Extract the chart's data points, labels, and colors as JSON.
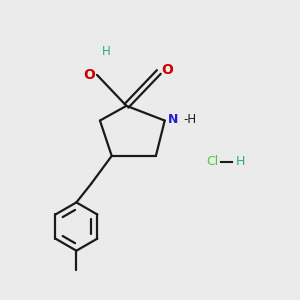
{
  "bg_color": "#ebebeb",
  "bond_color": "#1a1a1a",
  "N_color": "#2020cc",
  "O_color": "#cc0000",
  "OH_color": "#2aaa8a",
  "H_color": "#2aaa8a",
  "Cl_color": "#44cc44",
  "lw": 1.6,
  "fig_size": [
    3.0,
    3.0
  ],
  "dpi": 100,
  "xlim": [
    0,
    10
  ],
  "ylim": [
    0,
    10
  ]
}
